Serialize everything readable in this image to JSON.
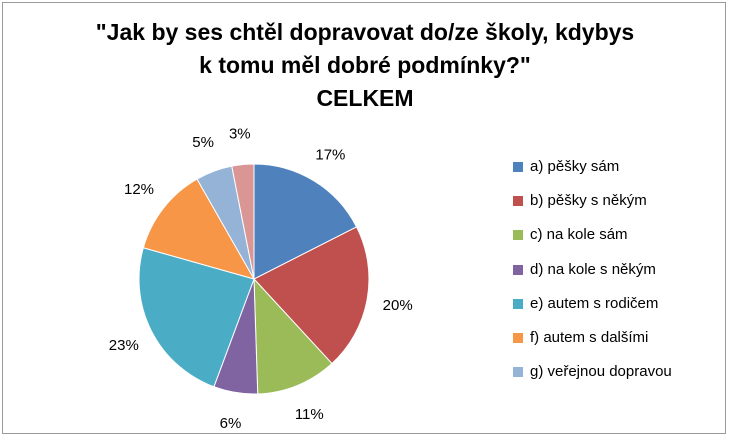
{
  "chart_data": {
    "type": "pie",
    "title_lines": [
      "\"Jak by ses chtěl dopravovat do/ze školy, kdybys",
      "k tomu měl dobré podmínky?\"",
      "CELKEM"
    ],
    "slices": [
      {
        "label": "a) pěšky sám",
        "value": 17,
        "display": "17%",
        "color": "#4f81bd"
      },
      {
        "label": "b) pěšky s někým",
        "value": 20,
        "display": "20%",
        "color": "#c0504d"
      },
      {
        "label": "c) na kole sám",
        "value": 11,
        "display": "11%",
        "color": "#9bbb59"
      },
      {
        "label": "d) na kole s někým",
        "value": 6,
        "display": "6%",
        "color": "#8064a2"
      },
      {
        "label": "e) autem s rodičem",
        "value": 23,
        "display": "23%",
        "color": "#4bacc6"
      },
      {
        "label": "f) autem s dalšími",
        "value": 12,
        "display": "12%",
        "color": "#f79646"
      },
      {
        "label": "g) veřejnou dopravou",
        "value": 5,
        "display": "5%",
        "color": "#95b3d7"
      },
      {
        "label": "",
        "value": 3,
        "display": "3%",
        "color": "#d99694"
      }
    ],
    "legend_position": "right",
    "start_angle": "top",
    "direction": "clockwise"
  }
}
